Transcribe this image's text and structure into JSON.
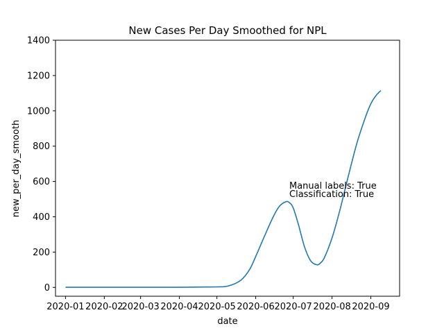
{
  "chart_data": {
    "type": "line",
    "title": "New Cases Per Day Smoothed for NPL",
    "xlabel": "date",
    "ylabel": "new_per_day_smooth",
    "xlim": [
      "2019-12-24",
      "2020-09-24"
    ],
    "ylim": [
      -50,
      1400
    ],
    "x_ticks": [
      "2020-01",
      "2020-02",
      "2020-03",
      "2020-04",
      "2020-05",
      "2020-06",
      "2020-07",
      "2020-08",
      "2020-09"
    ],
    "y_ticks": [
      0,
      200,
      400,
      600,
      800,
      1000,
      1200,
      1400
    ],
    "grid": false,
    "line_color": "#1f77b4",
    "annotations": [
      "Manual labels: True",
      "Classification: True"
    ],
    "series": [
      {
        "x": [
          "2020-01-01",
          "2020-01-15",
          "2020-02-01",
          "2020-02-15",
          "2020-03-01",
          "2020-03-15",
          "2020-04-01",
          "2020-04-15",
          "2020-05-01",
          "2020-05-10",
          "2020-05-20",
          "2020-05-27",
          "2020-06-01",
          "2020-06-08",
          "2020-06-15",
          "2020-06-20",
          "2020-06-25",
          "2020-06-28",
          "2020-07-01",
          "2020-07-05",
          "2020-07-10",
          "2020-07-15",
          "2020-07-20",
          "2020-07-23",
          "2020-07-26",
          "2020-08-01",
          "2020-08-07",
          "2020-08-14",
          "2020-08-21",
          "2020-08-28",
          "2020-09-01",
          "2020-09-05",
          "2020-09-09"
        ],
        "y": [
          1,
          1,
          1,
          1,
          1,
          1,
          1,
          2,
          3,
          8,
          40,
          100,
          175,
          290,
          400,
          460,
          485,
          480,
          450,
          360,
          230,
          150,
          128,
          140,
          170,
          280,
          430,
          630,
          820,
          970,
          1040,
          1085,
          1115
        ]
      }
    ]
  }
}
